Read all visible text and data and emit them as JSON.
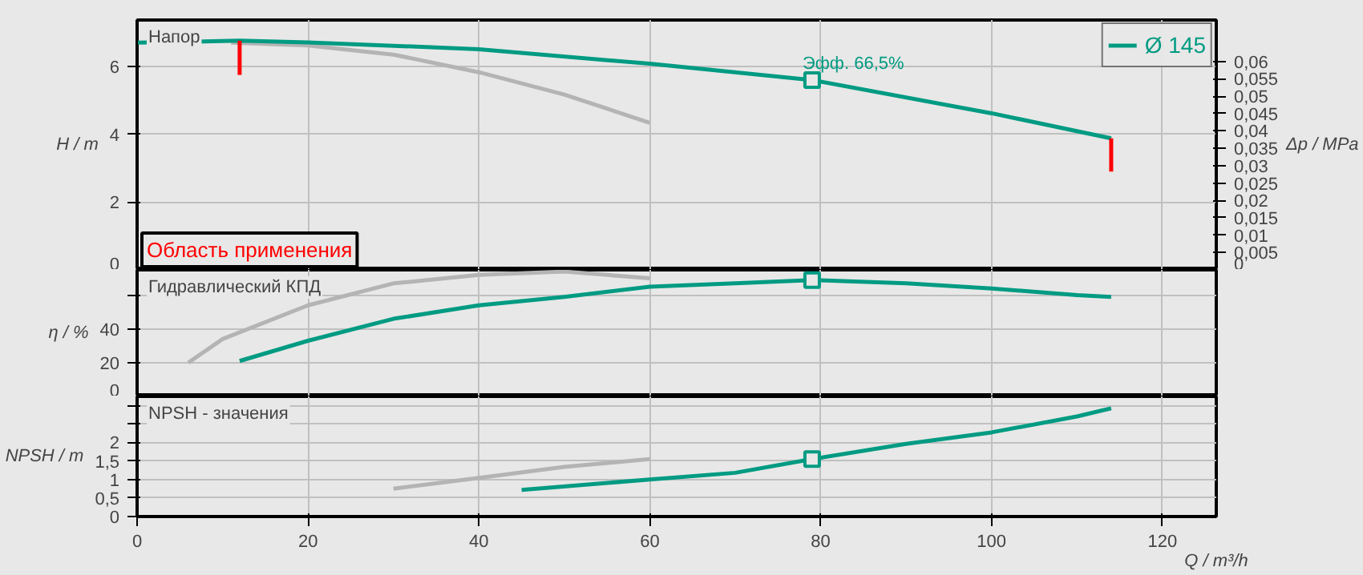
{
  "chart_data": [
    {
      "type": "line",
      "title": "Напор",
      "ylabel": "H / m",
      "y2label": "Δp / MPa",
      "xlim": [
        0,
        126.3
      ],
      "ylim": [
        0,
        7.37
      ],
      "y2lim": [
        0,
        0.0719
      ],
      "xticks": [
        0,
        20,
        40,
        60,
        80,
        100,
        120
      ],
      "yticks": [
        0,
        2,
        4,
        6
      ],
      "y2ticks": [
        0,
        {
          "value": 0.005,
          "label": "0,005"
        },
        {
          "value": 0.01,
          "label": "0,01"
        },
        {
          "value": 0.015,
          "label": "0,015"
        },
        {
          "value": 0.02,
          "label": "0,02"
        },
        {
          "value": 0.025,
          "label": "0,025"
        },
        {
          "value": 0.03,
          "label": "0,03"
        },
        {
          "value": 0.035,
          "label": "0,035"
        },
        {
          "value": 0.04,
          "label": "0,04"
        },
        {
          "value": 0.045,
          "label": "0,045"
        },
        {
          "value": 0.05,
          "label": "0,05"
        },
        {
          "value": 0.055,
          "label": "0,055"
        },
        {
          "value": 0.06,
          "label": "0,06"
        }
      ],
      "grid": true,
      "tick_labels": "y",
      "legend": "top right",
      "annotations": [
        {
          "text": "Эфф.  66,5%",
          "x": 79,
          "y": 5.6
        },
        "Область применения"
      ],
      "series": [
        {
          "color": "#b4b4b4",
          "x": [
            11,
            20,
            30,
            40,
            50,
            60
          ],
          "values": [
            6.7,
            6.62,
            6.35,
            5.83,
            5.17,
            4.34
          ]
        },
        {
          "name": "Ø 145",
          "color": "#009b82",
          "x": [
            0,
            12,
            20,
            40,
            60,
            79,
            100,
            114
          ],
          "values": [
            6.7,
            6.76,
            6.71,
            6.51,
            6.08,
            5.6,
            4.62,
            3.88
          ]
        },
        {
          "color": "#ff0000",
          "x": [
            12,
            12
          ],
          "values": [
            6.76,
            5.75
          ]
        },
        {
          "color": "#ff0000",
          "x": [
            114,
            114
          ],
          "values": [
            3.88,
            2.9
          ]
        },
        {
          "type": "scatter",
          "marker": "square",
          "color": "#009b82",
          "x": [
            79
          ],
          "values": [
            5.6
          ]
        }
      ]
    },
    {
      "type": "line",
      "title": "Гидравлический КПД",
      "ylabel": "η / %",
      "xlim": [
        0,
        126.3
      ],
      "ylim": [
        0,
        75
      ],
      "xticks": [
        0,
        20,
        40,
        60,
        80,
        100,
        120
      ],
      "yticks": [
        0,
        20,
        40,
        {
          "value": 60,
          "label": null
        }
      ],
      "grid": true,
      "tick_labels": "y",
      "series": [
        {
          "color": "#b4b4b4",
          "x": [
            6,
            10,
            20,
            30,
            40,
            50,
            60
          ],
          "values": [
            20,
            34,
            54,
            67,
            72,
            74,
            70
          ]
        },
        {
          "color": "#009b82",
          "x": [
            12,
            20,
            30,
            40,
            50,
            60,
            70,
            79,
            90,
            100,
            110,
            114
          ],
          "values": [
            21,
            33,
            46,
            54,
            59,
            65,
            67,
            69,
            67,
            64,
            60,
            59
          ]
        },
        {
          "type": "scatter",
          "marker": "square",
          "color": "#009b82",
          "x": [
            79
          ],
          "values": [
            69
          ]
        }
      ]
    },
    {
      "type": "line",
      "title": "NPSH - значения",
      "ylabel": "NPSH / m",
      "xlabel": "Q / m³/h",
      "xlim": [
        0,
        126.3
      ],
      "ylim": [
        0,
        3.24
      ],
      "xticks": [
        0,
        20,
        40,
        60,
        80,
        100,
        120
      ],
      "yticks": [
        0,
        {
          "value": 0.5,
          "label": "0,5"
        },
        1,
        {
          "value": 1.5,
          "label": "1,5"
        },
        2,
        {
          "value": 2.5,
          "label": null
        },
        {
          "value": 3,
          "label": null
        }
      ],
      "grid": true,
      "series": [
        {
          "color": "#b4b4b4",
          "x": [
            30,
            40,
            50,
            60
          ],
          "values": [
            0.75,
            1.04,
            1.34,
            1.55
          ]
        },
        {
          "color": "#009b82",
          "x": [
            45,
            60,
            70,
            79,
            90,
            100,
            110,
            114
          ],
          "values": [
            0.72,
            1.0,
            1.18,
            1.55,
            1.96,
            2.27,
            2.7,
            2.92
          ]
        },
        {
          "type": "scatter",
          "marker": "square",
          "color": "#009b82",
          "x": [
            79
          ],
          "values": [
            1.55
          ]
        }
      ]
    }
  ]
}
